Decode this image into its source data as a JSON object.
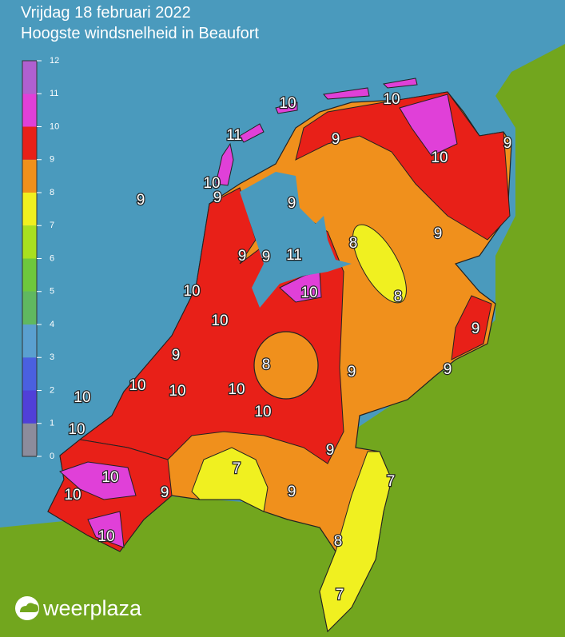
{
  "header": {
    "title": "Vrijdag 18 februari 2022",
    "subtitle": "Hoogste windsnelheid in Beaufort"
  },
  "legend": {
    "ticks": [
      0,
      1,
      2,
      3,
      4,
      5,
      6,
      7,
      8,
      9,
      10,
      11,
      12
    ],
    "colors": [
      "#8c8c9c",
      "#5040d8",
      "#4a60e0",
      "#5aa0d0",
      "#60b860",
      "#6ec83c",
      "#a8e020",
      "#f0f020",
      "#f0901c",
      "#e82018",
      "#e040d8",
      "#b060d0"
    ]
  },
  "labels": [
    10,
    10,
    11,
    9,
    9,
    10,
    10,
    9,
    9,
    9,
    8,
    9,
    9,
    9,
    11,
    10,
    10,
    8,
    10,
    9,
    9,
    8,
    9,
    9,
    10,
    10,
    10,
    10,
    10,
    10,
    9,
    7,
    7,
    10,
    10,
    9,
    9,
    8,
    10,
    7
  ],
  "logo": "weerplaza"
}
